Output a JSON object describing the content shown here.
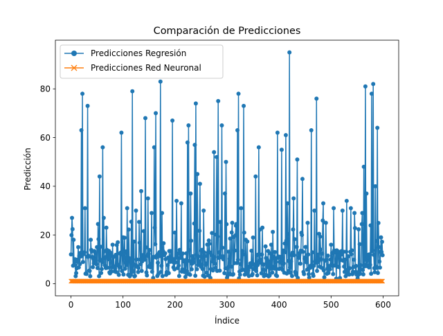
{
  "chart_data": {
    "type": "line",
    "title": "Comparación de Predicciones",
    "xlabel": "Índice",
    "ylabel": "Predicción",
    "xlim": [
      -30,
      630
    ],
    "ylim": [
      -5,
      100
    ],
    "xticks": [
      0,
      100,
      200,
      300,
      400,
      500,
      600
    ],
    "yticks": [
      0,
      20,
      40,
      60,
      80
    ],
    "grid": false,
    "legend_placement": "top-left",
    "n_points": 600,
    "series": [
      {
        "name": "Predicciones Regresión",
        "color": "#1f77b4",
        "marker": "circle",
        "seed": 12345,
        "base_range": [
          3,
          14
        ],
        "peaks": [
          {
            "x": 0,
            "y": 12
          },
          {
            "x": 2,
            "y": 27
          },
          {
            "x": 5,
            "y": 18
          },
          {
            "x": 8,
            "y": 10
          },
          {
            "x": 14,
            "y": 15
          },
          {
            "x": 20,
            "y": 63
          },
          {
            "x": 22,
            "y": 78
          },
          {
            "x": 27,
            "y": 31
          },
          {
            "x": 32,
            "y": 73
          },
          {
            "x": 38,
            "y": 18
          },
          {
            "x": 50,
            "y": 15
          },
          {
            "x": 55,
            "y": 44
          },
          {
            "x": 61,
            "y": 56
          },
          {
            "x": 63,
            "y": 27
          },
          {
            "x": 68,
            "y": 23
          },
          {
            "x": 80,
            "y": 16
          },
          {
            "x": 90,
            "y": 17
          },
          {
            "x": 97,
            "y": 62
          },
          {
            "x": 100,
            "y": 19
          },
          {
            "x": 108,
            "y": 31
          },
          {
            "x": 118,
            "y": 79
          },
          {
            "x": 125,
            "y": 30
          },
          {
            "x": 135,
            "y": 38
          },
          {
            "x": 143,
            "y": 68
          },
          {
            "x": 148,
            "y": 35
          },
          {
            "x": 155,
            "y": 29
          },
          {
            "x": 160,
            "y": 56
          },
          {
            "x": 163,
            "y": 70
          },
          {
            "x": 172,
            "y": 83
          },
          {
            "x": 175,
            "y": 29
          },
          {
            "x": 195,
            "y": 67
          },
          {
            "x": 203,
            "y": 34
          },
          {
            "x": 212,
            "y": 33
          },
          {
            "x": 224,
            "y": 58
          },
          {
            "x": 226,
            "y": 65
          },
          {
            "x": 230,
            "y": 37
          },
          {
            "x": 238,
            "y": 57
          },
          {
            "x": 240,
            "y": 74
          },
          {
            "x": 243,
            "y": 45
          },
          {
            "x": 248,
            "y": 41
          },
          {
            "x": 255,
            "y": 30
          },
          {
            "x": 275,
            "y": 54
          },
          {
            "x": 280,
            "y": 52
          },
          {
            "x": 283,
            "y": 75
          },
          {
            "x": 290,
            "y": 65
          },
          {
            "x": 296,
            "y": 37
          },
          {
            "x": 298,
            "y": 50
          },
          {
            "x": 310,
            "y": 25
          },
          {
            "x": 320,
            "y": 63
          },
          {
            "x": 322,
            "y": 78
          },
          {
            "x": 327,
            "y": 31
          },
          {
            "x": 332,
            "y": 73
          },
          {
            "x": 336,
            "y": 18
          },
          {
            "x": 355,
            "y": 44
          },
          {
            "x": 361,
            "y": 56
          },
          {
            "x": 368,
            "y": 23
          },
          {
            "x": 385,
            "y": 16
          },
          {
            "x": 397,
            "y": 62
          },
          {
            "x": 405,
            "y": 55
          },
          {
            "x": 413,
            "y": 61
          },
          {
            "x": 416,
            "y": 33
          },
          {
            "x": 420,
            "y": 95
          },
          {
            "x": 428,
            "y": 35
          },
          {
            "x": 435,
            "y": 51
          },
          {
            "x": 445,
            "y": 43
          },
          {
            "x": 455,
            "y": 25
          },
          {
            "x": 462,
            "y": 63
          },
          {
            "x": 468,
            "y": 30
          },
          {
            "x": 472,
            "y": 76
          },
          {
            "x": 485,
            "y": 33
          },
          {
            "x": 490,
            "y": 25
          },
          {
            "x": 500,
            "y": 16
          },
          {
            "x": 505,
            "y": 31
          },
          {
            "x": 522,
            "y": 30
          },
          {
            "x": 530,
            "y": 34
          },
          {
            "x": 538,
            "y": 31
          },
          {
            "x": 545,
            "y": 29
          },
          {
            "x": 560,
            "y": 29
          },
          {
            "x": 563,
            "y": 48
          },
          {
            "x": 566,
            "y": 81
          },
          {
            "x": 568,
            "y": 37
          },
          {
            "x": 578,
            "y": 78
          },
          {
            "x": 581,
            "y": 82
          },
          {
            "x": 585,
            "y": 40
          },
          {
            "x": 589,
            "y": 64
          },
          {
            "x": 592,
            "y": 15
          },
          {
            "x": 596,
            "y": 19
          }
        ]
      },
      {
        "name": "Predicciones Red Neuronal",
        "color": "#ff7f0e",
        "marker": "x",
        "constant": 1
      }
    ]
  }
}
